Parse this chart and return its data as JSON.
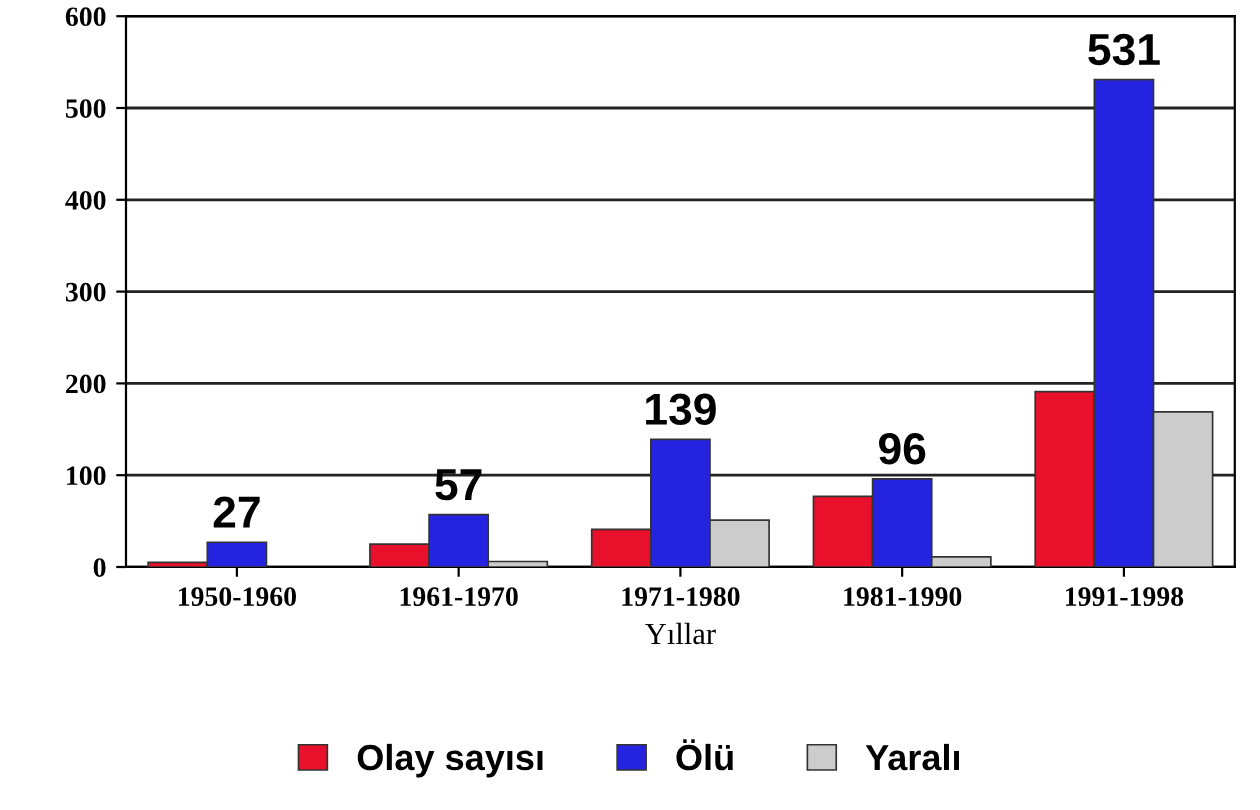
{
  "chart_data": {
    "type": "bar",
    "xlabel": "Yıllar",
    "categories": [
      "1950-1960",
      "1961-1970",
      "1971-1980",
      "1981-1990",
      "1991-1998"
    ],
    "series": [
      {
        "name": "Olay sayısı",
        "color": "#e8102a",
        "values": [
          5,
          25,
          41,
          77,
          191
        ]
      },
      {
        "name": "Ölü",
        "color": "#2424e0",
        "values": [
          27,
          57,
          139,
          96,
          531
        ],
        "value_labels": [
          "27",
          "57",
          "139",
          "96",
          "531"
        ]
      },
      {
        "name": "Yaralı",
        "color": "#cccccc",
        "values": [
          null,
          6,
          51,
          11,
          169
        ]
      }
    ],
    "ylim": [
      0,
      600
    ],
    "yticks": [
      0,
      100,
      200,
      300,
      400,
      500,
      600
    ],
    "grid": "y",
    "legend": "bottom"
  }
}
